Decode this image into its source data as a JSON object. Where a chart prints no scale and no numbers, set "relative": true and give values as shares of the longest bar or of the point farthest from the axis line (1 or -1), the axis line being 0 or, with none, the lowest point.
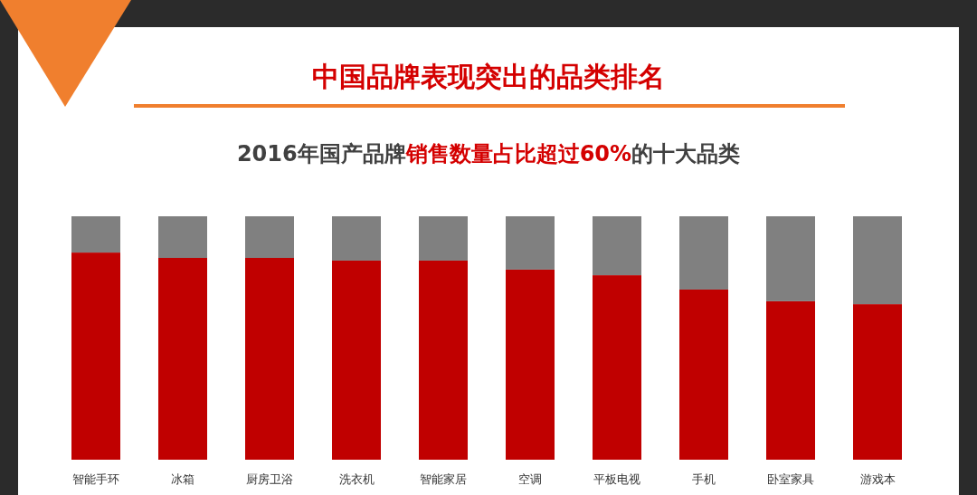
{
  "chart_data": {
    "type": "bar",
    "stacked": true,
    "relative": true,
    "title": "中国品牌表现突出的品类排名",
    "subtitle": "2016年国产品牌**销售数量占比超过60%**的十大品类",
    "categories": [
      "智能手环",
      "冰箱",
      "厨房卫浴",
      "洗衣机",
      "智能家居",
      "空调",
      "平板电视",
      "手机",
      "卧室家具",
      "游戏本"
    ],
    "series": [
      {
        "color": "#c00000",
        "values": [
          0.851,
          0.829,
          0.829,
          0.818,
          0.818,
          0.781,
          0.758,
          0.699,
          0.651,
          0.639
        ]
      },
      {
        "color": "#808080",
        "values": [
          0.149,
          0.171,
          0.171,
          0.182,
          0.182,
          0.219,
          0.242,
          0.301,
          0.349,
          0.361
        ]
      }
    ]
  }
}
